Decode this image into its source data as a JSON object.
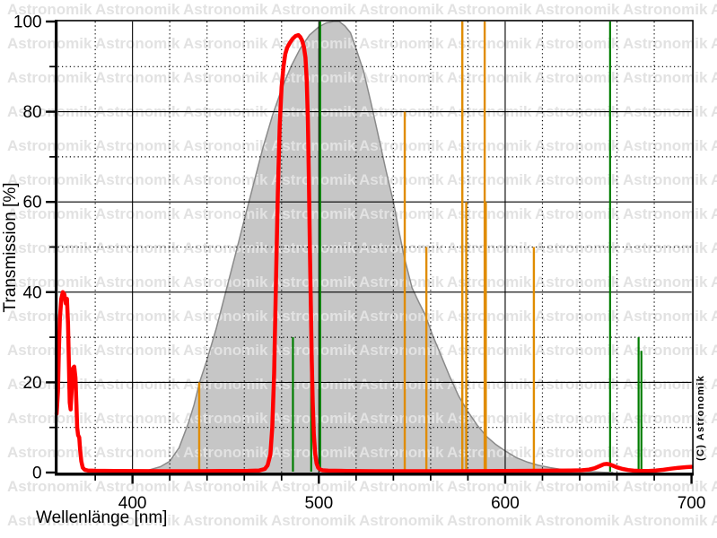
{
  "watermark": {
    "text": "Astronomik",
    "color": "#e2e2e2"
  },
  "copyright": "(C) Astronomik",
  "axes": {
    "x": {
      "title": "Wellenlänge [nm]",
      "min": 360,
      "max": 700,
      "tick_labels": [
        "400",
        "500",
        "600",
        "700"
      ],
      "tick_values": [
        400,
        500,
        600,
        700
      ],
      "minor_ticks": [
        380,
        420,
        440,
        460,
        480,
        520,
        540,
        560,
        580,
        620,
        640,
        660,
        680
      ],
      "solid_gridlines": [
        400,
        500,
        600
      ],
      "dotted_gridlines": [
        380,
        420,
        440,
        460,
        480,
        520,
        540,
        560,
        580,
        620,
        640,
        660,
        680
      ]
    },
    "y": {
      "title": "Transmission [%]",
      "min": 0,
      "max": 100,
      "tick_labels": [
        "0",
        "20",
        "40",
        "60",
        "80",
        "100"
      ],
      "tick_values": [
        0,
        20,
        40,
        60,
        80,
        100
      ],
      "minor_ticks": [
        10,
        30,
        50,
        70,
        90
      ],
      "solid_gridlines": [
        20,
        40,
        60,
        80
      ],
      "dotted_gridlines": [
        10,
        30,
        50,
        70,
        90
      ]
    }
  },
  "chart_data": {
    "type": "line",
    "title": "",
    "xlabel": "Wellenlänge [nm]",
    "ylabel": "Transmission [%]",
    "xlim": [
      360,
      700
    ],
    "ylim": [
      0,
      100
    ],
    "grid": "solid major + dotted minor",
    "legend": "none",
    "series": [
      {
        "name": "eye-night-sensitivity-area",
        "type": "area",
        "fill": "#c6c6c6",
        "border_color": "#8a8a8a",
        "points": [
          [
            404,
            0
          ],
          [
            410,
            0.7
          ],
          [
            415,
            1.3
          ],
          [
            420,
            2.5
          ],
          [
            425,
            5.5
          ],
          [
            430,
            11
          ],
          [
            433,
            15
          ],
          [
            436,
            20
          ],
          [
            440,
            25
          ],
          [
            445,
            32
          ],
          [
            450,
            40
          ],
          [
            455,
            48
          ],
          [
            460,
            56
          ],
          [
            465,
            64
          ],
          [
            470,
            72
          ],
          [
            475,
            79
          ],
          [
            480,
            85
          ],
          [
            485,
            90
          ],
          [
            490,
            94
          ],
          [
            495,
            97
          ],
          [
            500,
            98.8
          ],
          [
            504,
            99.7
          ],
          [
            508,
            100
          ],
          [
            511,
            100
          ],
          [
            514,
            99
          ],
          [
            517,
            97.5
          ],
          [
            520,
            94
          ],
          [
            524,
            89
          ],
          [
            528,
            82
          ],
          [
            532,
            74.5
          ],
          [
            536,
            67
          ],
          [
            540,
            60
          ],
          [
            543,
            53.5
          ],
          [
            546,
            47.5
          ],
          [
            550,
            41
          ],
          [
            554,
            37.5
          ],
          [
            557,
            35
          ],
          [
            561,
            30.5
          ],
          [
            565,
            26.5
          ],
          [
            570,
            21.5
          ],
          [
            575,
            17
          ],
          [
            580,
            13.5
          ],
          [
            585,
            10.5
          ],
          [
            590,
            8
          ],
          [
            595,
            6.2
          ],
          [
            600,
            4.8
          ],
          [
            606,
            3.3
          ],
          [
            612,
            2.3
          ],
          [
            618,
            1.6
          ],
          [
            624,
            1.1
          ],
          [
            630,
            0.7
          ],
          [
            638,
            0.4
          ],
          [
            646,
            0.2
          ],
          [
            653,
            0.05
          ],
          [
            658,
            0
          ]
        ]
      },
      {
        "name": "filter-transmission-curve",
        "type": "line",
        "color": "#ff0000",
        "stroke_width": 4.5,
        "points": [
          [
            359.3,
            13
          ],
          [
            360,
            18
          ],
          [
            360.5,
            27
          ],
          [
            361,
            34
          ],
          [
            361.8,
            38.5
          ],
          [
            362.6,
            40
          ],
          [
            363.4,
            39.5
          ],
          [
            364.2,
            37.5
          ],
          [
            364.8,
            38.5
          ],
          [
            365.4,
            33
          ],
          [
            365.9,
            23
          ],
          [
            366.3,
            15.5
          ],
          [
            366.8,
            14
          ],
          [
            367.3,
            18
          ],
          [
            367.9,
            23
          ],
          [
            368.7,
            23.5
          ],
          [
            369.4,
            21
          ],
          [
            369.9,
            15
          ],
          [
            370.3,
            10
          ],
          [
            370.8,
            8.3
          ],
          [
            371.4,
            7.8
          ],
          [
            371.9,
            5
          ],
          [
            372.5,
            2.5
          ],
          [
            373.3,
            1.1
          ],
          [
            374.4,
            0.6
          ],
          [
            376,
            0.45
          ],
          [
            380,
            0.4
          ],
          [
            390,
            0.35
          ],
          [
            405,
            0.32
          ],
          [
            420,
            0.3
          ],
          [
            435,
            0.3
          ],
          [
            450,
            0.33
          ],
          [
            462,
            0.38
          ],
          [
            468,
            0.45
          ],
          [
            471,
            0.8
          ],
          [
            472.5,
            1.6
          ],
          [
            474,
            4
          ],
          [
            475,
            10
          ],
          [
            476,
            22
          ],
          [
            477,
            42
          ],
          [
            478,
            62
          ],
          [
            479,
            77
          ],
          [
            480,
            85.5
          ],
          [
            481,
            90
          ],
          [
            482,
            92.8
          ],
          [
            483,
            94.2
          ],
          [
            484.5,
            95.3
          ],
          [
            486,
            96.2
          ],
          [
            487.5,
            96.8
          ],
          [
            489,
            97
          ],
          [
            490,
            96.6
          ],
          [
            491,
            95.8
          ],
          [
            492,
            94.3
          ],
          [
            492.8,
            92
          ],
          [
            493.5,
            87
          ],
          [
            494.1,
            78
          ],
          [
            494.7,
            64
          ],
          [
            495.2,
            50
          ],
          [
            495.7,
            37
          ],
          [
            496.2,
            25
          ],
          [
            496.7,
            15.5
          ],
          [
            497.3,
            8.5
          ],
          [
            498,
            4.2
          ],
          [
            498.8,
            2
          ],
          [
            499.6,
            1.1
          ],
          [
            500.6,
            0.7
          ],
          [
            502,
            0.5
          ],
          [
            505,
            0.42
          ],
          [
            515,
            0.35
          ],
          [
            530,
            0.3
          ],
          [
            550,
            0.3
          ],
          [
            570,
            0.3
          ],
          [
            590,
            0.32
          ],
          [
            610,
            0.38
          ],
          [
            625,
            0.42
          ],
          [
            635,
            0.45
          ],
          [
            641,
            0.5
          ],
          [
            645,
            0.65
          ],
          [
            648,
            0.95
          ],
          [
            651,
            1.5
          ],
          [
            653,
            1.85
          ],
          [
            654.5,
            1.9
          ],
          [
            656,
            1.8
          ],
          [
            658,
            1.5
          ],
          [
            660,
            1.15
          ],
          [
            663,
            0.8
          ],
          [
            666,
            0.55
          ],
          [
            669,
            0.42
          ],
          [
            673,
            0.36
          ],
          [
            677,
            0.36
          ],
          [
            681,
            0.45
          ],
          [
            685,
            0.62
          ],
          [
            689,
            0.85
          ],
          [
            693,
            1.05
          ],
          [
            697,
            1.2
          ],
          [
            700,
            1.28
          ]
        ]
      },
      {
        "name": "nebula-emission-lines",
        "type": "vlines",
        "color": "#007d00",
        "width": 2.2,
        "lines": [
          {
            "nm": 486.1,
            "height_pct": 30
          },
          {
            "nm": 495.9,
            "height_pct": 35
          },
          {
            "nm": 500.7,
            "height_pct": 100
          },
          {
            "nm": 656.3,
            "height_pct": 100
          },
          {
            "nm": 671.6,
            "height_pct": 30
          },
          {
            "nm": 673.1,
            "height_pct": 27
          }
        ]
      },
      {
        "name": "light-pollution-lines",
        "type": "vlines",
        "color": "#e08c00",
        "width": 2.4,
        "lines": [
          {
            "nm": 435.8,
            "height_pct": 20
          },
          {
            "nm": 546.1,
            "height_pct": 80
          },
          {
            "nm": 557.7,
            "height_pct": 50
          },
          {
            "nm": 577.0,
            "height_pct": 100
          },
          {
            "nm": 579.1,
            "height_pct": 60
          },
          {
            "nm": 589.0,
            "height_pct": 100
          },
          {
            "nm": 589.6,
            "height_pct": 60
          },
          {
            "nm": 615.4,
            "height_pct": 50
          }
        ]
      }
    ]
  }
}
